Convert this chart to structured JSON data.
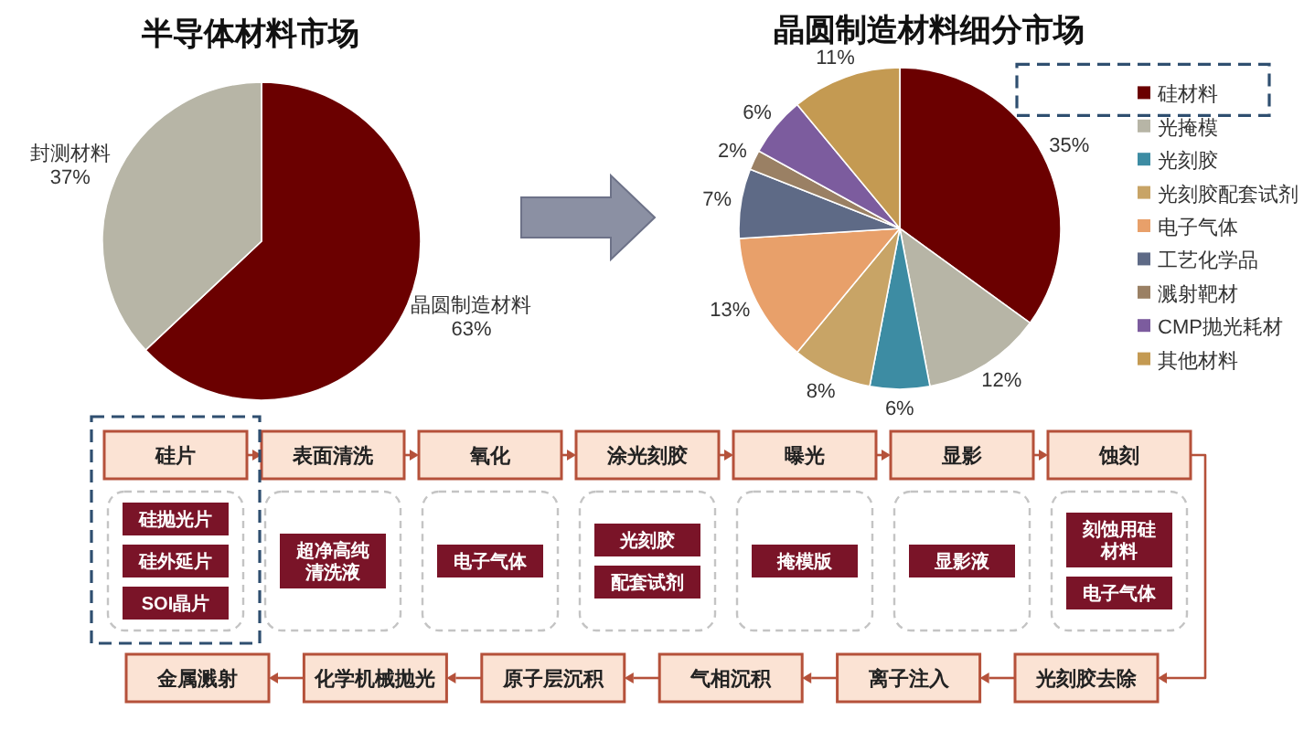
{
  "chart_data": [
    {
      "type": "pie",
      "title": "半导体材料市场",
      "categories": [
        "晶圆制造材料",
        "封测材料"
      ],
      "values": [
        63,
        37
      ],
      "colors": [
        "#6b0000",
        "#b7b5a6"
      ],
      "value_labels": [
        "63%",
        "37%"
      ]
    },
    {
      "type": "pie",
      "title": "晶圆制造材料细分市场",
      "categories": [
        "硅材料",
        "光掩模",
        "光刻胶",
        "光刻胶配套试剂",
        "电子气体",
        "工艺化学品",
        "溅射靶材",
        "CMP抛光耗材",
        "其他材料"
      ],
      "values": [
        35,
        12,
        6,
        8,
        13,
        7,
        2,
        6,
        11
      ],
      "colors": [
        "#6b0000",
        "#b7b5a6",
        "#3d8ca3",
        "#c8a466",
        "#e8a06a",
        "#5e6a86",
        "#9a8064",
        "#7c5c9e",
        "#c49a52"
      ],
      "value_labels": [
        "35%",
        "12%",
        "6%",
        "8%",
        "13%",
        "7%",
        "2%",
        "6%",
        "11%"
      ],
      "legend": "right"
    },
    {
      "type": "other",
      "categories": [
        "硅片",
        "表面清洗",
        "氧化",
        "涂光刻胶",
        "曝光",
        "显影",
        "蚀刻",
        "光刻胶去除",
        "离子注入",
        "气相沉积",
        "原子层沉积",
        "化学机械抛光",
        "金属溅射"
      ],
      "annotations": [
        {
          "text": "硅抛光片",
          "x": "硅片"
        },
        {
          "text": "硅外延片",
          "x": "硅片"
        },
        {
          "text": "SOI晶片",
          "x": "硅片"
        },
        {
          "text": "超净高纯清洗液",
          "x": "表面清洗"
        },
        {
          "text": "电子气体",
          "x": "氧化"
        },
        {
          "text": "光刻胶",
          "x": "涂光刻胶"
        },
        {
          "text": "配套试剂",
          "x": "涂光刻胶"
        },
        {
          "text": "掩模版",
          "x": "曝光"
        },
        {
          "text": "显影液",
          "x": "显影"
        },
        {
          "text": "刻蚀用硅材料",
          "x": "蚀刻"
        },
        {
          "text": "电子气体",
          "x": "蚀刻"
        }
      ]
    }
  ]
}
